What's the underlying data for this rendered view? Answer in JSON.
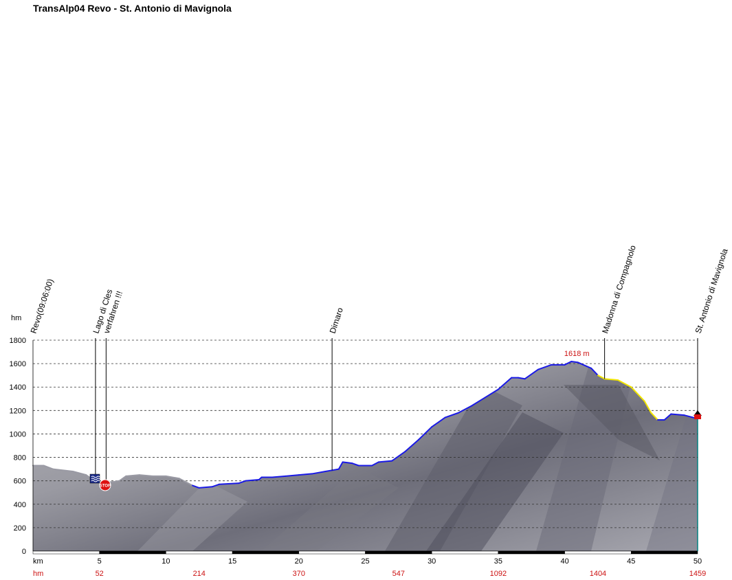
{
  "title": "TransAlp04 Revo - St. Antonio di Mavignola",
  "chart_data": {
    "type": "area",
    "title": "TransAlp04 Revo - St. Antonio di Mavignola",
    "ylabel": "hm",
    "xlabel": "km",
    "ylim": [
      0,
      1800
    ],
    "xlim": [
      0,
      50
    ],
    "y_ticks": [
      "0",
      "200",
      "400",
      "600",
      "800",
      "1000",
      "1200",
      "1400",
      "1600",
      "1800"
    ],
    "x_ticks": [
      "5",
      "10",
      "15",
      "20",
      "25",
      "30",
      "35",
      "40",
      "45",
      "50"
    ],
    "x_label_row": "km",
    "hm_label_row": "hm",
    "cumulative_ascent": [
      "52",
      "214",
      "370",
      "547",
      "1092",
      "1404",
      "1459"
    ],
    "cumulative_ascent_km": [
      5,
      12.5,
      20,
      27.5,
      35,
      42.5,
      50
    ],
    "max_elevation_label": "1618 m",
    "max_elevation_km": 40.5,
    "profile": [
      [
        0,
        730
      ],
      [
        0.8,
        730
      ],
      [
        1.5,
        700
      ],
      [
        3,
        680
      ],
      [
        4,
        650
      ],
      [
        4.5,
        610
      ],
      [
        5,
        590
      ],
      [
        6,
        590
      ],
      [
        6.5,
        600
      ],
      [
        7,
        640
      ],
      [
        8,
        650
      ],
      [
        9,
        640
      ],
      [
        10,
        640
      ],
      [
        11,
        620
      ],
      [
        12,
        560
      ],
      [
        12.5,
        540
      ],
      [
        13.5,
        550
      ],
      [
        14,
        570
      ],
      [
        15.5,
        580
      ],
      [
        16,
        600
      ],
      [
        17,
        610
      ],
      [
        17.2,
        630
      ],
      [
        18,
        630
      ],
      [
        19,
        640
      ],
      [
        20,
        650
      ],
      [
        21,
        660
      ],
      [
        22,
        680
      ],
      [
        22.5,
        690
      ],
      [
        23,
        700
      ],
      [
        23.3,
        760
      ],
      [
        24,
        750
      ],
      [
        24.5,
        730
      ],
      [
        25.5,
        730
      ],
      [
        26,
        760
      ],
      [
        27,
        770
      ],
      [
        28,
        850
      ],
      [
        29,
        950
      ],
      [
        30,
        1060
      ],
      [
        30.5,
        1100
      ],
      [
        31,
        1140
      ],
      [
        32,
        1180
      ],
      [
        33,
        1240
      ],
      [
        34,
        1310
      ],
      [
        35,
        1380
      ],
      [
        36,
        1480
      ],
      [
        36.5,
        1480
      ],
      [
        37,
        1470
      ],
      [
        38,
        1550
      ],
      [
        39,
        1590
      ],
      [
        40,
        1590
      ],
      [
        40.5,
        1618
      ],
      [
        41,
        1610
      ],
      [
        42,
        1560
      ],
      [
        42.5,
        1500
      ],
      [
        43,
        1470
      ],
      [
        44,
        1460
      ],
      [
        45,
        1400
      ],
      [
        46,
        1280
      ],
      [
        46.5,
        1180
      ],
      [
        47,
        1120
      ],
      [
        47.5,
        1120
      ],
      [
        48,
        1170
      ],
      [
        49,
        1160
      ],
      [
        50,
        1130
      ]
    ],
    "waypoints": [
      {
        "label": "Revo(09:06:00)",
        "km": 0
      },
      {
        "label": "Lago di Cles",
        "km": 4.7
      },
      {
        "label": "verfahren !!!",
        "km": 5.5
      },
      {
        "label": "Dimaro",
        "km": 22.5
      },
      {
        "label": "Madonna di Compagnolo",
        "km": 43
      },
      {
        "label": "St. Antonio di Mavignola",
        "km": 50
      }
    ],
    "grid": true,
    "colors": {
      "profile_line": "#1a1ae6",
      "downhill_line": "#f2e600",
      "terrain": "#8c8c94",
      "grid": "#333333",
      "ascent_labels": "#cc1111",
      "max_label": "#cc1111"
    },
    "icons": [
      "water-icon",
      "stop-sign-icon",
      "finish-flag-icon"
    ],
    "stop_sign_text": "STOP"
  }
}
